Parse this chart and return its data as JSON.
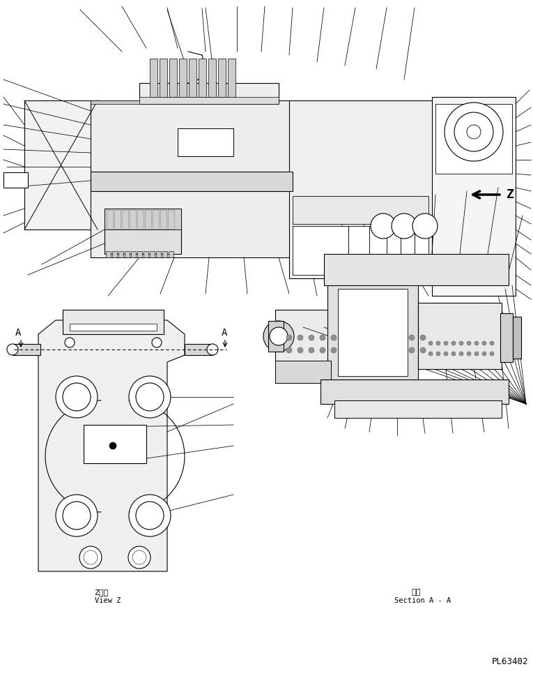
{
  "background_color": "#ffffff",
  "line_color": "#000000",
  "page_id": "PL63402",
  "view_z_label_jp": "Z　視",
  "view_z_label_en": "View Z",
  "section_label_jp": "断面",
  "section_label_en": "Section A - A",
  "figsize": [
    7.65,
    9.69
  ],
  "dpi": 100
}
